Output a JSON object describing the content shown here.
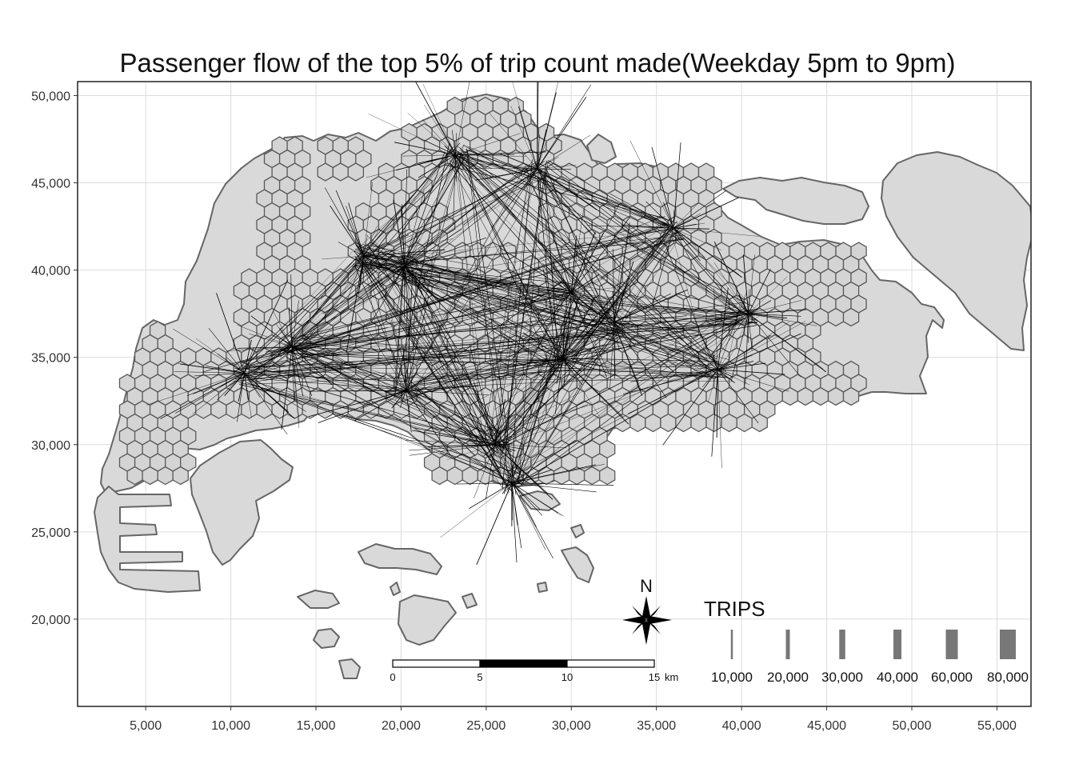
{
  "map": {
    "title": "Passenger flow of the top 5% of trip count made(Weekday 5pm to 9pm)",
    "x_axis": {
      "range": [
        1000,
        57000
      ],
      "ticks": [
        "5,000",
        "10,000",
        "15,000",
        "20,000",
        "25,000",
        "30,000",
        "35,000",
        "40,000",
        "45,000",
        "50,000",
        "55,000"
      ],
      "tick_values": [
        5000,
        10000,
        15000,
        20000,
        25000,
        30000,
        35000,
        40000,
        45000,
        50000,
        55000
      ]
    },
    "y_axis": {
      "range": [
        15000,
        50800
      ],
      "ticks": [
        "20,000",
        "25,000",
        "30,000",
        "35,000",
        "40,000",
        "45,000",
        "50,000"
      ],
      "tick_values": [
        20000,
        25000,
        30000,
        35000,
        40000,
        45000,
        50000
      ]
    },
    "colors": {
      "land": "#d9d9d9",
      "land_outline": "#666666",
      "grid": "#dcdcdc",
      "flow": "#000000",
      "panel_border": "#222222"
    },
    "hubs": [
      {
        "x": 13600,
        "y": 35600
      },
      {
        "x": 20300,
        "y": 33100
      },
      {
        "x": 20200,
        "y": 40200
      },
      {
        "x": 23200,
        "y": 46600
      },
      {
        "x": 26500,
        "y": 27800
      },
      {
        "x": 28000,
        "y": 45800
      },
      {
        "x": 36000,
        "y": 42400
      },
      {
        "x": 40400,
        "y": 37500
      },
      {
        "x": 38600,
        "y": 34300
      },
      {
        "x": 30000,
        "y": 38700
      },
      {
        "x": 32500,
        "y": 37000
      },
      {
        "x": 17800,
        "y": 40800
      },
      {
        "x": 10800,
        "y": 34100
      },
      {
        "x": 25500,
        "y": 30000
      },
      {
        "x": 29500,
        "y": 34900
      }
    ]
  },
  "legend": {
    "title": "TRIPS",
    "items": [
      {
        "label": "10,000",
        "value": 10000
      },
      {
        "label": "20,000",
        "value": 20000
      },
      {
        "label": "30,000",
        "value": 30000
      },
      {
        "label": "40,000",
        "value": 40000
      },
      {
        "label": "60,000",
        "value": 60000
      },
      {
        "label": "80,000",
        "value": 80000
      }
    ]
  },
  "scale_bar": {
    "labels": [
      "0",
      "5",
      "10",
      "15"
    ],
    "unit": "km"
  },
  "north_arrow": {
    "label": "N"
  }
}
